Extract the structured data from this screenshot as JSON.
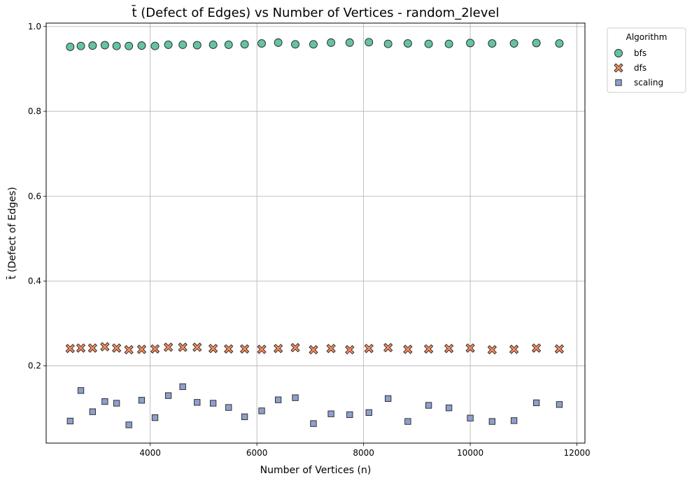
{
  "chart_data": {
    "type": "scatter",
    "title": "t̄ (Defect of Edges) vs Number of Vertices - random_2level",
    "xlabel": "Number of Vertices (n)",
    "ylabel": "t̄ (Defect of Edges)",
    "xlim": [
      2050,
      12150
    ],
    "ylim": [
      0.018,
      1.008
    ],
    "xticks": [
      4000,
      6000,
      8000,
      10000,
      12000
    ],
    "yticks": [
      0.2,
      0.4,
      0.6,
      0.8,
      1.0
    ],
    "ytick_labels": [
      "0.2",
      "0.4",
      "0.6",
      "0.8",
      "1.0"
    ],
    "grid": true,
    "legend": {
      "title": "Algorithm",
      "placement": "outside-top-right"
    },
    "x": [
      2500,
      2700,
      2920,
      3150,
      3370,
      3600,
      3840,
      4090,
      4340,
      4610,
      4880,
      5180,
      5470,
      5770,
      6090,
      6400,
      6720,
      7060,
      7390,
      7740,
      8100,
      8460,
      8830,
      9220,
      9600,
      10000,
      10410,
      10820,
      11240,
      11670
    ],
    "series": [
      {
        "name": "bfs",
        "color": "#66c2a5",
        "marker": "circle",
        "values": [
          0.952,
          0.954,
          0.955,
          0.956,
          0.954,
          0.954,
          0.955,
          0.954,
          0.957,
          0.957,
          0.956,
          0.957,
          0.957,
          0.958,
          0.96,
          0.962,
          0.958,
          0.958,
          0.962,
          0.962,
          0.963,
          0.959,
          0.96,
          0.959,
          0.959,
          0.961,
          0.96,
          0.96,
          0.961,
          0.96
        ]
      },
      {
        "name": "dfs",
        "color": "#fc8d62",
        "marker": "x",
        "values": [
          0.241,
          0.242,
          0.242,
          0.245,
          0.242,
          0.238,
          0.239,
          0.24,
          0.244,
          0.244,
          0.244,
          0.241,
          0.24,
          0.24,
          0.239,
          0.241,
          0.243,
          0.238,
          0.241,
          0.238,
          0.241,
          0.243,
          0.239,
          0.24,
          0.241,
          0.242,
          0.238,
          0.239,
          0.242,
          0.24
        ]
      },
      {
        "name": "scaling",
        "color": "#8da0cb",
        "marker": "square",
        "values": [
          0.07,
          0.142,
          0.092,
          0.116,
          0.112,
          0.061,
          0.119,
          0.078,
          0.13,
          0.151,
          0.114,
          0.112,
          0.102,
          0.08,
          0.094,
          0.12,
          0.125,
          0.064,
          0.087,
          0.085,
          0.09,
          0.123,
          0.069,
          0.107,
          0.101,
          0.077,
          0.069,
          0.071,
          0.113,
          0.109
        ]
      }
    ]
  }
}
